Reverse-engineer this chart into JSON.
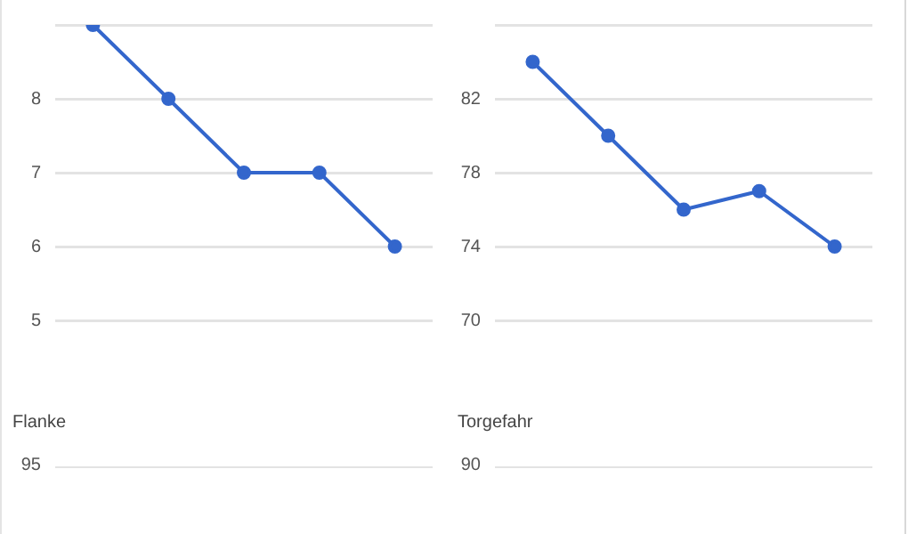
{
  "chart_data": [
    {
      "type": "line",
      "categories": [
        null,
        null,
        null,
        null,
        null
      ],
      "series": [
        {
          "color": "#3366cc",
          "values": [
            9,
            8,
            7,
            7,
            6
          ]
        }
      ],
      "ylim": [
        5,
        9
      ],
      "yticks": [
        5,
        6,
        7,
        8,
        {
          "value": 9,
          "label": null
        }
      ],
      "grid": "y",
      "tick_labels": "y",
      "marker": "circle",
      "legend": false
    },
    {
      "type": "line",
      "categories": [
        null,
        null,
        null,
        null,
        null
      ],
      "series": [
        {
          "color": "#3366cc",
          "values": [
            84,
            80,
            76,
            77,
            74
          ]
        }
      ],
      "ylim": [
        70,
        86
      ],
      "yticks": [
        70,
        74,
        78,
        82,
        {
          "value": 86,
          "label": null
        }
      ],
      "grid": "y",
      "tick_labels": "y",
      "marker": "circle",
      "legend": false
    },
    {
      "type": "other",
      "title": "Flanke",
      "annotations": [
        "95"
      ]
    },
    {
      "type": "other",
      "title": "Torgefahr",
      "annotations": [
        "90"
      ]
    }
  ]
}
